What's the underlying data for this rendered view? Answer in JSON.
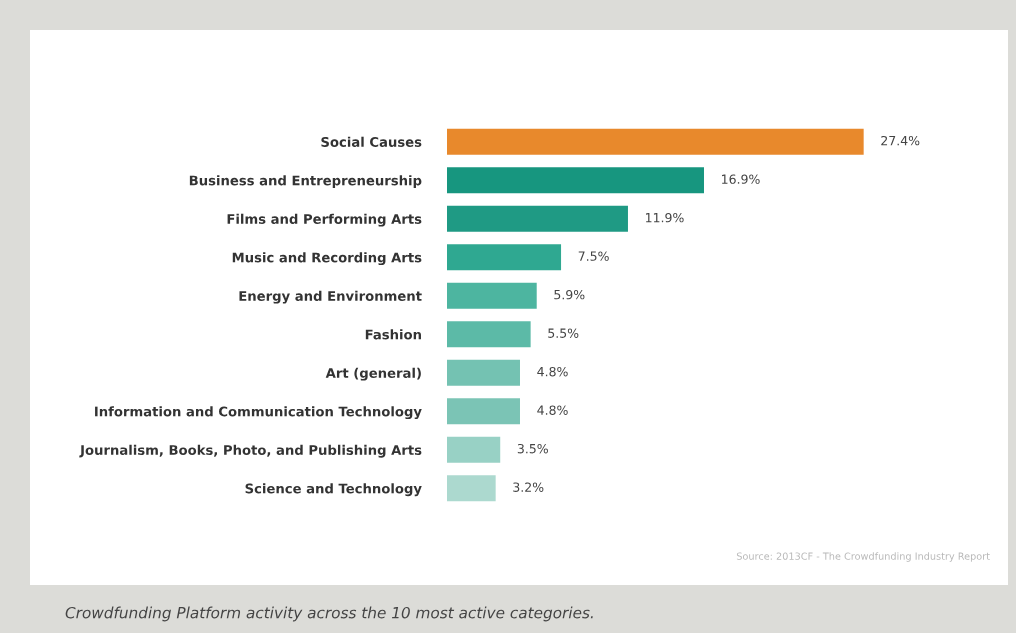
{
  "chart_data": {
    "type": "bar",
    "orientation": "horizontal",
    "value_labels": [
      "27.4%",
      "16.9%",
      "11.9%",
      "7.5%",
      "5.9%",
      "5.5%",
      "4.8%",
      "4.8%",
      "3.5%",
      "3.2%"
    ],
    "categories": [
      "Social Causes",
      "Business and Entrepreneurship",
      "Films and Performing Arts",
      "Music and Recording Arts",
      "Energy and Environment",
      "Fashion",
      "Art (general)",
      "Information and Communication Technology",
      "Journalism, Books, Photo, and Publishing Arts",
      "Science and Technology"
    ],
    "values": [
      27.4,
      16.9,
      11.9,
      7.5,
      5.9,
      5.5,
      4.8,
      4.8,
      3.5,
      3.2
    ],
    "colors": [
      "#e8892c",
      "#17967f",
      "#1f9a84",
      "#2fa891",
      "#4db5a0",
      "#5cbaa7",
      "#74c2b2",
      "#7bc4b5",
      "#98d1c5",
      "#acd9cf"
    ],
    "annotations": [
      "Source: 2013CF - The Crowdfunding Industry Report",
      "Crowdfunding Platform activity across the 10 most active categories."
    ]
  }
}
